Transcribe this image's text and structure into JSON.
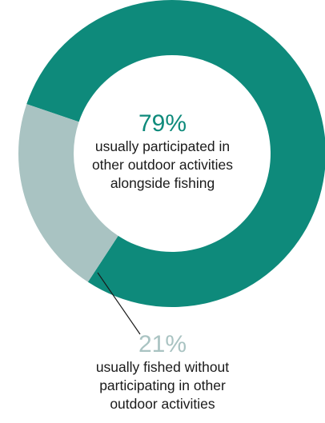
{
  "chart_data": {
    "type": "pie",
    "style": "donut",
    "categories": [
      "usually participated in other outdoor activities alongside fishing",
      "usually fished without participating in other outdoor activities"
    ],
    "values": [
      79,
      21
    ],
    "value_labels": [
      "79%",
      "21%"
    ],
    "colors": [
      "#0e8a7b",
      "#a9c3c2"
    ],
    "descriptions": [
      [
        "usually participated in",
        "other outdoor activities",
        "alongside fishing"
      ],
      [
        "usually fished without",
        "participating in other",
        "outdoor activities"
      ]
    ]
  }
}
